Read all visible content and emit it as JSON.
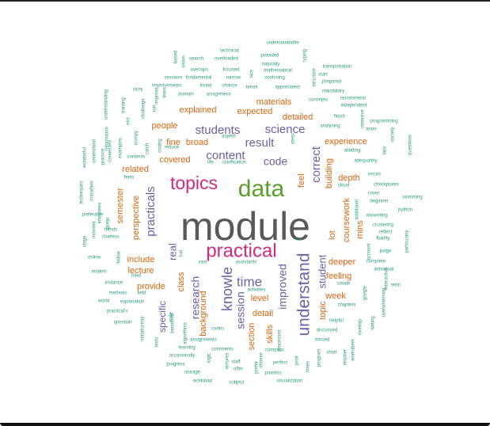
{
  "colors": {
    "gray": "#595959",
    "green": "#5aa02c",
    "magenta": "#d6287c",
    "purple": "#6a60a8",
    "orange": "#d9650e",
    "teal": "#2a9a7e"
  },
  "words": [
    {
      "text": "module",
      "color": "gray"
    },
    {
      "text": "data",
      "color": "green"
    },
    {
      "text": "topics",
      "color": "magenta"
    },
    {
      "text": "practical",
      "color": "magenta"
    },
    {
      "text": "knowle",
      "color": "purple"
    },
    {
      "text": "understand",
      "color": "purple"
    },
    {
      "text": "time",
      "color": "purple"
    },
    {
      "text": "students",
      "color": "purple"
    },
    {
      "text": "science",
      "color": "purple"
    },
    {
      "text": "content",
      "color": "purple"
    },
    {
      "text": "result",
      "color": "purple"
    },
    {
      "text": "code",
      "color": "purple"
    },
    {
      "text": "practicals",
      "color": "purple"
    },
    {
      "text": "correct",
      "color": "purple"
    },
    {
      "text": "research",
      "color": "purple"
    },
    {
      "text": "session",
      "color": "purple"
    },
    {
      "text": "improved",
      "color": "purple"
    },
    {
      "text": "student",
      "color": "purple"
    },
    {
      "text": "real",
      "color": "purple"
    },
    {
      "text": "specific",
      "color": "purple"
    },
    {
      "text": "explained",
      "color": "orange"
    },
    {
      "text": "expected",
      "color": "orange"
    },
    {
      "text": "materials",
      "color": "orange"
    },
    {
      "text": "detailed",
      "color": "orange"
    },
    {
      "text": "people",
      "color": "orange"
    },
    {
      "text": "fine",
      "color": "orange"
    },
    {
      "text": "broad",
      "color": "orange"
    },
    {
      "text": "experience",
      "color": "orange"
    },
    {
      "text": "covered",
      "color": "orange"
    },
    {
      "text": "related",
      "color": "orange"
    },
    {
      "text": "building",
      "color": "orange"
    },
    {
      "text": "depth",
      "color": "orange"
    },
    {
      "text": "feel",
      "color": "orange"
    },
    {
      "text": "semester",
      "color": "orange"
    },
    {
      "text": "perspective",
      "color": "orange"
    },
    {
      "text": "coursework",
      "color": "orange"
    },
    {
      "text": "lot",
      "color": "orange"
    },
    {
      "text": "mins",
      "color": "orange"
    },
    {
      "text": "include",
      "color": "orange"
    },
    {
      "text": "lecture",
      "color": "orange"
    },
    {
      "text": "deeper",
      "color": "orange"
    },
    {
      "text": "feeling",
      "color": "orange"
    },
    {
      "text": "level",
      "color": "orange"
    },
    {
      "text": "detail",
      "color": "orange"
    },
    {
      "text": "provide",
      "color": "orange"
    },
    {
      "text": "class",
      "color": "orange"
    },
    {
      "text": "background",
      "color": "orange"
    },
    {
      "text": "week",
      "color": "orange"
    },
    {
      "text": "topic",
      "color": "orange"
    },
    {
      "text": "section",
      "color": "orange"
    },
    {
      "text": "skills",
      "color": "orange"
    },
    {
      "text": "understandable",
      "color": "teal"
    },
    {
      "text": "technical",
      "color": "teal"
    },
    {
      "text": "provided",
      "color": "teal"
    },
    {
      "text": "naturally",
      "color": "teal"
    },
    {
      "text": "search",
      "color": "teal"
    },
    {
      "text": "overloaded",
      "color": "teal"
    },
    {
      "text": "mathematical",
      "color": "teal"
    },
    {
      "text": "transportation",
      "color": "teal"
    },
    {
      "text": "overlaps",
      "color": "teal"
    },
    {
      "text": "focused",
      "color": "teal"
    },
    {
      "text": "confusing",
      "color": "teal"
    },
    {
      "text": "start",
      "color": "teal"
    },
    {
      "text": "sessions",
      "color": "teal"
    },
    {
      "text": "fundamental",
      "color": "teal"
    },
    {
      "text": "narrow",
      "color": "teal"
    },
    {
      "text": "prepared",
      "color": "teal"
    },
    {
      "text": "improvements",
      "color": "teal"
    },
    {
      "text": "found",
      "color": "teal"
    },
    {
      "text": "chance",
      "color": "teal"
    },
    {
      "text": "break",
      "color": "teal"
    },
    {
      "text": "appreciated",
      "color": "teal"
    },
    {
      "text": "mandatory",
      "color": "teal"
    },
    {
      "text": "story",
      "color": "teal"
    },
    {
      "text": "domain",
      "color": "teal"
    },
    {
      "text": "assignment",
      "color": "teal"
    },
    {
      "text": "concepts",
      "color": "teal"
    },
    {
      "text": "recommend",
      "color": "teal"
    },
    {
      "text": "independent",
      "color": "teal"
    },
    {
      "text": "finish",
      "color": "teal"
    },
    {
      "text": "programming",
      "color": "teal"
    },
    {
      "text": "team",
      "color": "teal"
    },
    {
      "text": "analysing",
      "color": "teal"
    },
    {
      "text": "aspect",
      "color": "teal"
    },
    {
      "text": "reduce",
      "color": "teal"
    },
    {
      "text": "allotting",
      "color": "teal"
    },
    {
      "text": "contents",
      "color": "teal"
    },
    {
      "text": "life",
      "color": "teal"
    },
    {
      "text": "clarification",
      "color": "teal"
    },
    {
      "text": "adequately",
      "color": "teal"
    },
    {
      "text": "feels",
      "color": "teal"
    },
    {
      "text": "errors",
      "color": "teal"
    },
    {
      "text": "checkpoints",
      "color": "teal"
    },
    {
      "text": "cloud",
      "color": "teal"
    },
    {
      "text": "cover",
      "color": "teal"
    },
    {
      "text": "beginner",
      "color": "teal"
    },
    {
      "text": "skimming",
      "color": "teal"
    },
    {
      "text": "python",
      "color": "teal"
    },
    {
      "text": "answering",
      "color": "teal"
    },
    {
      "text": "clustering",
      "color": "teal"
    },
    {
      "text": "reflect",
      "color": "teal"
    },
    {
      "text": "fluidity",
      "color": "teal"
    },
    {
      "text": "preferable",
      "color": "teal"
    },
    {
      "text": "hands",
      "color": "teal"
    },
    {
      "text": "clueless",
      "color": "teal"
    },
    {
      "text": "moment",
      "color": "teal"
    },
    {
      "text": "stage",
      "color": "teal"
    },
    {
      "text": "online",
      "color": "teal"
    },
    {
      "text": "follow",
      "color": "teal"
    },
    {
      "text": "fun",
      "color": "teal"
    },
    {
      "text": "vast",
      "color": "teal"
    },
    {
      "text": "assistants",
      "color": "teal"
    },
    {
      "text": "na",
      "color": "teal"
    },
    {
      "text": "judge",
      "color": "teal"
    },
    {
      "text": "complete",
      "color": "teal"
    },
    {
      "text": "individual",
      "color": "teal"
    },
    {
      "text": "models",
      "color": "teal"
    },
    {
      "text": "hard",
      "color": "teal"
    },
    {
      "text": "instance",
      "color": "teal"
    },
    {
      "text": "methods",
      "color": "teal"
    },
    {
      "text": "field",
      "color": "teal"
    },
    {
      "text": "world",
      "color": "teal"
    },
    {
      "text": "explanation",
      "color": "teal"
    },
    {
      "text": "practical's",
      "color": "teal"
    },
    {
      "text": "question",
      "color": "teal"
    },
    {
      "text": "activities",
      "color": "teal"
    },
    {
      "text": "create",
      "color": "teal"
    },
    {
      "text": "chapters",
      "color": "teal"
    },
    {
      "text": "term",
      "color": "teal"
    },
    {
      "text": "helpful",
      "color": "teal"
    },
    {
      "text": "discussed",
      "color": "teal"
    },
    {
      "text": "missed",
      "color": "teal"
    },
    {
      "text": "short",
      "color": "teal"
    },
    {
      "text": "codes",
      "color": "teal"
    },
    {
      "text": "assignments",
      "color": "teal"
    },
    {
      "text": "learning",
      "color": "teal"
    },
    {
      "text": "comments",
      "color": "teal"
    },
    {
      "text": "compass",
      "color": "teal"
    },
    {
      "text": "occasionally",
      "color": "teal"
    },
    {
      "text": "progress",
      "color": "teal"
    },
    {
      "text": "staff",
      "color": "teal"
    },
    {
      "text": "offer",
      "color": "teal"
    },
    {
      "text": "perfect",
      "color": "teal"
    },
    {
      "text": "storage",
      "color": "teal"
    },
    {
      "text": "process",
      "color": "teal"
    },
    {
      "text": "workload",
      "color": "teal"
    },
    {
      "text": "subject",
      "color": "teal"
    },
    {
      "text": "visualization",
      "color": "teal"
    },
    {
      "text": "introductory",
      "color": "teal"
    },
    {
      "text": "tests",
      "color": "teal"
    },
    {
      "text": "note",
      "color": "teal"
    },
    {
      "text": "beneficial",
      "color": "teal"
    },
    {
      "text": "algorithms",
      "color": "teal"
    },
    {
      "text": "logic",
      "color": "teal"
    },
    {
      "text": "lectures",
      "color": "teal"
    },
    {
      "text": "prefer",
      "color": "teal"
    },
    {
      "text": "choose",
      "color": "teal"
    },
    {
      "text": "prior",
      "color": "teal"
    },
    {
      "text": "times",
      "color": "teal"
    },
    {
      "text": "program",
      "color": "teal"
    },
    {
      "text": "teacher",
      "color": "teal"
    },
    {
      "text": "worksheet",
      "color": "teal"
    },
    {
      "text": "overlap",
      "color": "teal"
    },
    {
      "text": "writing",
      "color": "teal"
    },
    {
      "text": "overwhelming",
      "color": "teal"
    },
    {
      "text": "google",
      "color": "teal"
    },
    {
      "text": "interactive",
      "color": "teal"
    },
    {
      "text": "particularly",
      "color": "teal"
    },
    {
      "text": "account",
      "color": "teal"
    },
    {
      "text": "additional",
      "color": "teal"
    },
    {
      "text": "techniques",
      "color": "teal"
    },
    {
      "text": "marathon",
      "color": "teal"
    },
    {
      "text": "interviews",
      "color": "teal"
    },
    {
      "text": "grasp",
      "color": "teal"
    },
    {
      "text": "wonderful",
      "color": "teal"
    },
    {
      "text": "understood",
      "color": "teal"
    },
    {
      "text": "practice",
      "color": "teal"
    },
    {
      "text": "connected",
      "color": "teal"
    },
    {
      "text": "information",
      "color": "teal"
    },
    {
      "text": "examples",
      "color": "teal"
    },
    {
      "text": "understanding",
      "color": "teal"
    },
    {
      "text": "mid",
      "color": "teal"
    },
    {
      "text": "training",
      "color": "teal"
    },
    {
      "text": "numpy",
      "color": "teal"
    },
    {
      "text": "challenge",
      "color": "teal"
    },
    {
      "text": "run",
      "color": "teal"
    },
    {
      "text": "improve",
      "color": "teal"
    },
    {
      "text": "learn",
      "color": "teal"
    },
    {
      "text": "coding",
      "color": "teal"
    },
    {
      "text": "catch",
      "color": "teal"
    },
    {
      "text": "based",
      "color": "teal"
    },
    {
      "text": "vision",
      "color": "teal"
    },
    {
      "text": "typing",
      "color": "teal"
    },
    {
      "text": "structure",
      "color": "teal"
    },
    {
      "text": "intensive",
      "color": "teal"
    },
    {
      "text": "labs",
      "color": "teal"
    },
    {
      "text": "society",
      "color": "teal"
    },
    {
      "text": "questions",
      "color": "teal"
    },
    {
      "text": "processes",
      "color": "teal"
    },
    {
      "text": "deep",
      "color": "teal"
    },
    {
      "text": "nice",
      "color": "teal"
    },
    {
      "text": "focus",
      "color": "teal"
    }
  ]
}
